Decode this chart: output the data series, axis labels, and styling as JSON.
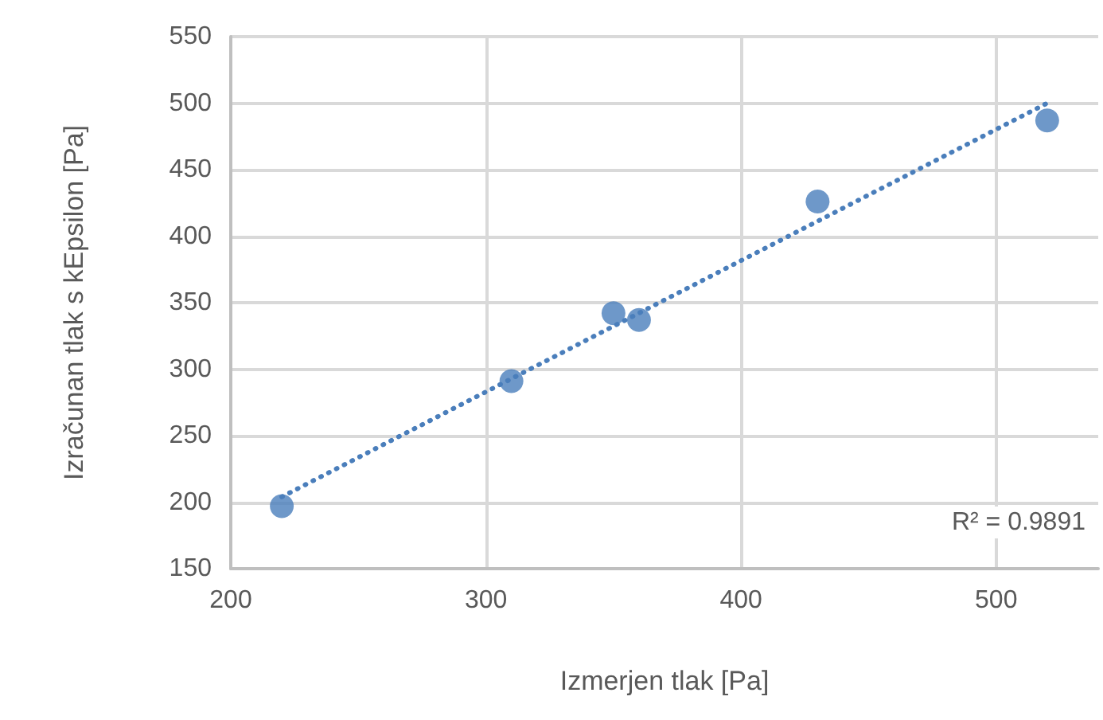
{
  "chart_data": {
    "type": "scatter",
    "xlabel": "Izmerjen tlak [Pa]",
    "ylabel": "Izračunan tlak s kEpsilon [Pa]",
    "xlim": [
      200,
      540
    ],
    "xticks": [
      200,
      300,
      400,
      500
    ],
    "ylim": [
      150,
      550
    ],
    "yticks": [
      150,
      200,
      250,
      300,
      350,
      400,
      450,
      500,
      550
    ],
    "grid": true,
    "marker": "circle",
    "annotations": [
      "R² = 0.9891"
    ],
    "series": [
      {
        "color": "#4a7ebb",
        "x": [
          220,
          310,
          350,
          360,
          430,
          520
        ],
        "values": [
          197,
          291,
          342,
          337,
          426,
          487
        ]
      },
      {
        "type": "line",
        "color": "#4a7ebb",
        "line_style": "dotted",
        "marker": "none",
        "x": [
          220,
          520
        ],
        "values": [
          204,
          500
        ]
      }
    ]
  }
}
